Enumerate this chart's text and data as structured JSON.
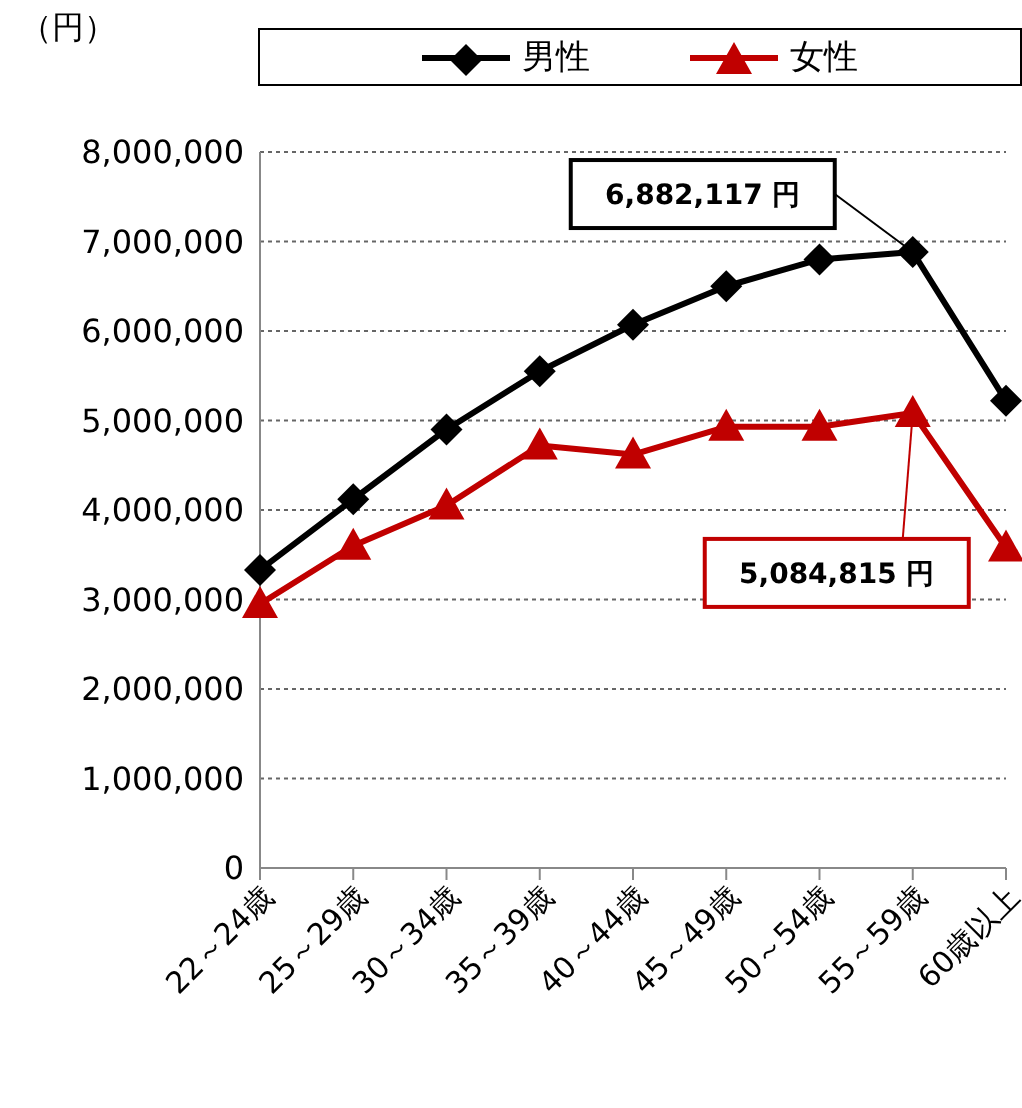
{
  "chart_data": {
    "type": "line",
    "ylabel": "（円）",
    "categories": [
      "22～24歳",
      "25～29歳",
      "30～34歳",
      "35～39歳",
      "40～44歳",
      "45～49歳",
      "50～54歳",
      "55～59歳",
      "60歳以上"
    ],
    "series": [
      {
        "name": "男性",
        "color": "#000000",
        "marker": "diamond",
        "values": [
          3330000,
          4120000,
          4900000,
          5550000,
          6070000,
          6500000,
          6800000,
          6882117,
          5220000
        ]
      },
      {
        "name": "女性",
        "color": "#c00000",
        "marker": "triangle",
        "values": [
          2950000,
          3600000,
          4050000,
          4720000,
          4620000,
          4930000,
          4930000,
          5084815,
          3580000
        ]
      }
    ],
    "ylim": [
      0,
      8000000
    ],
    "yticks": [
      0,
      {
        "value": 1000000,
        "label": "1,000,000"
      },
      {
        "value": 2000000,
        "label": "2,000,000"
      },
      {
        "value": 3000000,
        "label": "3,000,000"
      },
      {
        "value": 4000000,
        "label": "4,000,000"
      },
      {
        "value": 5000000,
        "label": "5,000,000"
      },
      {
        "value": 6000000,
        "label": "6,000,000"
      },
      {
        "value": 7000000,
        "label": "7,000,000"
      },
      {
        "value": 8000000,
        "label": "8,000,000"
      }
    ],
    "grid": "y",
    "legend": "top",
    "line_style": "solid",
    "annotations": [
      {
        "text": "6,882,117 円",
        "x": "55～59歳",
        "y": 6882117
      },
      {
        "text": "5,084,815 円",
        "x": "55～59歳",
        "y": 5084815
      }
    ]
  }
}
